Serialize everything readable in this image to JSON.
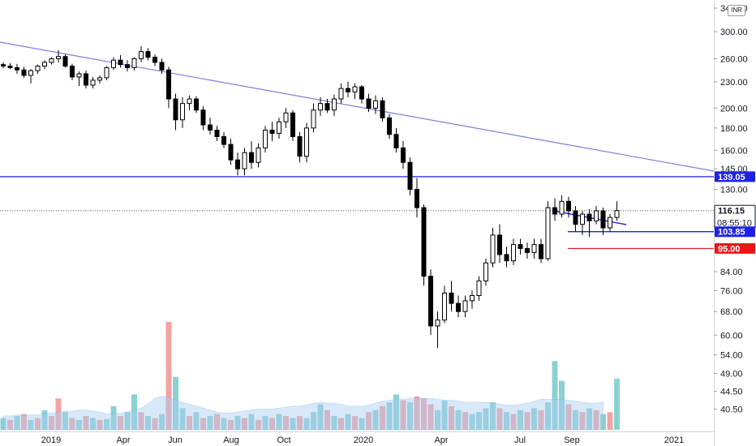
{
  "currency": "INR",
  "chart_data": {
    "type": "candlestick",
    "y_scale": "log",
    "ylim": [
      36,
      355
    ],
    "y_ticks": [
      340,
      300,
      260,
      230,
      200,
      180,
      160,
      145,
      130,
      84,
      76,
      68,
      60,
      54,
      49,
      44.5,
      40.5
    ],
    "x_labels": [
      "2019",
      "Apr",
      "Jun",
      "Aug",
      "Oct",
      "2020",
      "Apr",
      "Jul",
      "Sep",
      "2021"
    ],
    "price_labels": {
      "resistance": "139.05",
      "last": "116.15",
      "countdown": "08:55:10",
      "support": "103.85",
      "stop": "95.00"
    },
    "levels": {
      "resistance": 139.05,
      "last": 116.15,
      "support": 103.85,
      "stop": 95.0
    },
    "colors": {
      "up": "#ffffff",
      "down": "#000000",
      "outline": "#000000",
      "trendline": "#7b7fde",
      "level_blue": "#1e22e6",
      "level_red": "#e81717",
      "volume_up": "#6fc6c5",
      "volume_down": "#ef8c8c",
      "volume_ma": "#a9cdf3"
    },
    "candles": [
      [
        252,
        255,
        247,
        250
      ],
      [
        250,
        254,
        246,
        248
      ],
      [
        248,
        253,
        240,
        245
      ],
      [
        245,
        249,
        235,
        238
      ],
      [
        238,
        246,
        228,
        244
      ],
      [
        244,
        252,
        240,
        250
      ],
      [
        250,
        258,
        246,
        255
      ],
      [
        255,
        262,
        252,
        260
      ],
      [
        260,
        272,
        255,
        263
      ],
      [
        263,
        266,
        248,
        250
      ],
      [
        250,
        253,
        232,
        236
      ],
      [
        236,
        243,
        225,
        240
      ],
      [
        240,
        244,
        222,
        226
      ],
      [
        226,
        236,
        222,
        232
      ],
      [
        232,
        238,
        228,
        235
      ],
      [
        235,
        250,
        232,
        248
      ],
      [
        248,
        262,
        245,
        258
      ],
      [
        258,
        265,
        248,
        252
      ],
      [
        252,
        258,
        243,
        248
      ],
      [
        248,
        262,
        244,
        260
      ],
      [
        260,
        278,
        255,
        270
      ],
      [
        270,
        275,
        258,
        262
      ],
      [
        262,
        266,
        250,
        255
      ],
      [
        255,
        260,
        240,
        245
      ],
      [
        245,
        249,
        200,
        210
      ],
      [
        210,
        216,
        178,
        188
      ],
      [
        188,
        212,
        180,
        205
      ],
      [
        205,
        214,
        198,
        210
      ],
      [
        210,
        213,
        195,
        198
      ],
      [
        198,
        202,
        178,
        183
      ],
      [
        183,
        190,
        174,
        178
      ],
      [
        178,
        182,
        168,
        172
      ],
      [
        172,
        176,
        162,
        165
      ],
      [
        165,
        170,
        148,
        152
      ],
      [
        152,
        158,
        140,
        145
      ],
      [
        145,
        162,
        140,
        158
      ],
      [
        158,
        168,
        145,
        150
      ],
      [
        150,
        166,
        146,
        162
      ],
      [
        162,
        182,
        158,
        178
      ],
      [
        178,
        186,
        168,
        175
      ],
      [
        175,
        190,
        170,
        186
      ],
      [
        186,
        200,
        180,
        195
      ],
      [
        195,
        198,
        168,
        172
      ],
      [
        172,
        176,
        150,
        155
      ],
      [
        155,
        185,
        150,
        180
      ],
      [
        180,
        205,
        176,
        198
      ],
      [
        198,
        212,
        192,
        205
      ],
      [
        205,
        210,
        195,
        198
      ],
      [
        198,
        215,
        192,
        210
      ],
      [
        210,
        228,
        205,
        222
      ],
      [
        222,
        230,
        212,
        218
      ],
      [
        218,
        228,
        210,
        224
      ],
      [
        224,
        226,
        205,
        210
      ],
      [
        210,
        216,
        196,
        200
      ],
      [
        200,
        214,
        194,
        208
      ],
      [
        208,
        212,
        186,
        190
      ],
      [
        190,
        194,
        170,
        174
      ],
      [
        174,
        180,
        158,
        162
      ],
      [
        162,
        168,
        145,
        150
      ],
      [
        150,
        154,
        126,
        130
      ],
      [
        130,
        138,
        112,
        118
      ],
      [
        118,
        120,
        78,
        82
      ],
      [
        82,
        85,
        60,
        63
      ],
      [
        63,
        68,
        56,
        65
      ],
      [
        65,
        78,
        64,
        75
      ],
      [
        75,
        80,
        68,
        71
      ],
      [
        71,
        74,
        66,
        68
      ],
      [
        68,
        74,
        66,
        72
      ],
      [
        72,
        76,
        69,
        74
      ],
      [
        74,
        82,
        72,
        80
      ],
      [
        80,
        90,
        78,
        88
      ],
      [
        88,
        106,
        86,
        102
      ],
      [
        102,
        108,
        88,
        92
      ],
      [
        92,
        96,
        86,
        89
      ],
      [
        89,
        100,
        87,
        97
      ],
      [
        97,
        100,
        92,
        95
      ],
      [
        95,
        98,
        90,
        93
      ],
      [
        93,
        100,
        90,
        97
      ],
      [
        97,
        100,
        88,
        90
      ],
      [
        90,
        122,
        89,
        118
      ],
      [
        118,
        124,
        110,
        114
      ],
      [
        114,
        126,
        112,
        122
      ],
      [
        122,
        125,
        112,
        116
      ],
      [
        116,
        119,
        104,
        108
      ],
      [
        108,
        116,
        102,
        114
      ],
      [
        114,
        117,
        101,
        110
      ],
      [
        110,
        119,
        108,
        116
      ],
      [
        116,
        118,
        102,
        106
      ],
      [
        106,
        114,
        104,
        112
      ],
      [
        112,
        122,
        110,
        116.15
      ]
    ],
    "volumes": [
      [
        12,
        1
      ],
      [
        10,
        0
      ],
      [
        14,
        1
      ],
      [
        16,
        0
      ],
      [
        10,
        1
      ],
      [
        12,
        0
      ],
      [
        20,
        1
      ],
      [
        14,
        0
      ],
      [
        32,
        0
      ],
      [
        18,
        1
      ],
      [
        12,
        0
      ],
      [
        10,
        1
      ],
      [
        14,
        0
      ],
      [
        12,
        1
      ],
      [
        10,
        0
      ],
      [
        11,
        1
      ],
      [
        24,
        1
      ],
      [
        14,
        0
      ],
      [
        18,
        1
      ],
      [
        36,
        1
      ],
      [
        18,
        0
      ],
      [
        14,
        1
      ],
      [
        12,
        0
      ],
      [
        16,
        1
      ],
      [
        110,
        0
      ],
      [
        54,
        1
      ],
      [
        22,
        1
      ],
      [
        14,
        0
      ],
      [
        18,
        1
      ],
      [
        12,
        0
      ],
      [
        14,
        1
      ],
      [
        16,
        0
      ],
      [
        12,
        1
      ],
      [
        10,
        0
      ],
      [
        14,
        1
      ],
      [
        12,
        0
      ],
      [
        16,
        1
      ],
      [
        10,
        0
      ],
      [
        14,
        1
      ],
      [
        12,
        0
      ],
      [
        16,
        1
      ],
      [
        14,
        0
      ],
      [
        12,
        1
      ],
      [
        14,
        0
      ],
      [
        12,
        1
      ],
      [
        18,
        1
      ],
      [
        26,
        1
      ],
      [
        20,
        0
      ],
      [
        14,
        1
      ],
      [
        12,
        0
      ],
      [
        16,
        1
      ],
      [
        14,
        0
      ],
      [
        12,
        1
      ],
      [
        18,
        0
      ],
      [
        20,
        1
      ],
      [
        24,
        0
      ],
      [
        28,
        1
      ],
      [
        36,
        1
      ],
      [
        30,
        0
      ],
      [
        28,
        1
      ],
      [
        34,
        0
      ],
      [
        32,
        0
      ],
      [
        26,
        0
      ],
      [
        20,
        1
      ],
      [
        30,
        1
      ],
      [
        24,
        0
      ],
      [
        20,
        1
      ],
      [
        18,
        0
      ],
      [
        16,
        1
      ],
      [
        18,
        1
      ],
      [
        22,
        1
      ],
      [
        28,
        1
      ],
      [
        22,
        0
      ],
      [
        18,
        1
      ],
      [
        16,
        0
      ],
      [
        20,
        1
      ],
      [
        18,
        0
      ],
      [
        22,
        1
      ],
      [
        20,
        0
      ],
      [
        28,
        1
      ],
      [
        70,
        1
      ],
      [
        50,
        1
      ],
      [
        26,
        0
      ],
      [
        20,
        1
      ],
      [
        18,
        0
      ],
      [
        22,
        1
      ],
      [
        20,
        0
      ],
      [
        16,
        1
      ],
      [
        18,
        0
      ],
      [
        52,
        1
      ]
    ],
    "volume_ma": [
      14,
      14,
      15,
      15,
      15,
      15,
      16,
      17,
      18,
      19,
      19,
      20,
      20,
      19,
      18,
      16,
      16,
      17,
      18,
      20,
      22,
      26,
      32,
      34,
      33,
      30,
      28,
      26,
      24,
      22,
      20,
      18,
      17,
      17,
      18,
      19,
      20,
      21,
      21,
      21,
      22,
      23,
      24,
      24,
      25,
      27,
      28,
      27,
      27,
      26,
      24,
      24,
      24,
      25,
      27,
      29,
      30,
      31,
      31,
      32,
      32,
      32,
      32,
      31,
      30,
      30,
      29,
      28,
      28,
      28,
      28,
      27,
      26,
      25,
      25,
      26,
      27,
      29,
      31,
      31,
      31,
      31,
      30,
      29,
      28,
      27,
      27,
      28
    ]
  }
}
